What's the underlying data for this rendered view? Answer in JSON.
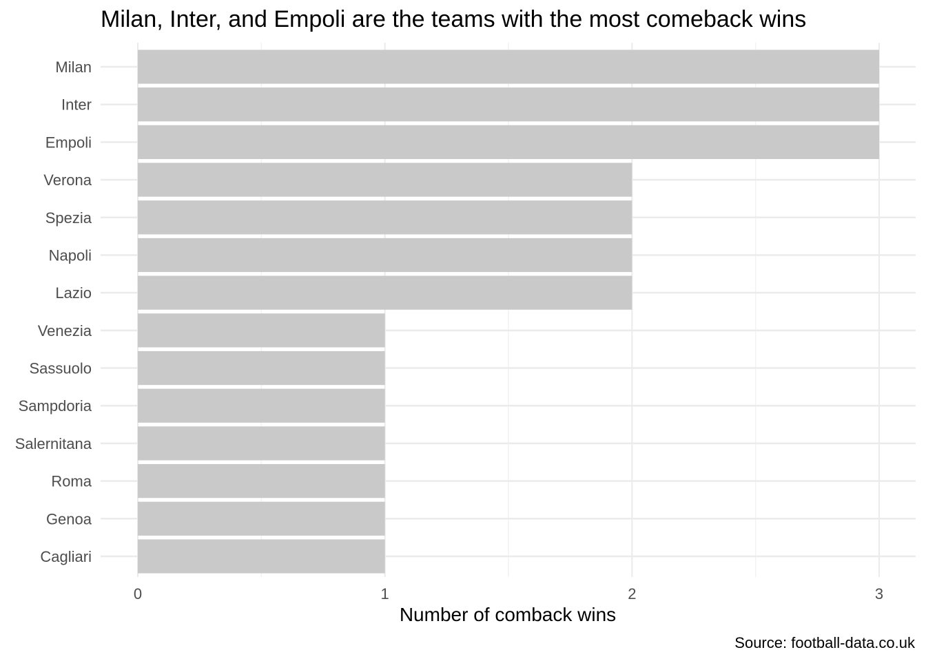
{
  "chart_data": {
    "type": "bar",
    "orientation": "horizontal",
    "title": "Milan, Inter, and Empoli are the teams with the most comeback wins",
    "xlabel": "Number of comback wins",
    "ylabel": "",
    "caption": "Source: football-data.co.uk",
    "categories": [
      "Milan",
      "Inter",
      "Empoli",
      "Verona",
      "Spezia",
      "Napoli",
      "Lazio",
      "Venezia",
      "Sassuolo",
      "Sampdoria",
      "Salernitana",
      "Roma",
      "Genoa",
      "Cagliari"
    ],
    "values": [
      3,
      3,
      3,
      2,
      2,
      2,
      2,
      1,
      1,
      1,
      1,
      1,
      1,
      1
    ],
    "xlim": [
      0,
      3
    ],
    "x_ticks": [
      "0",
      "1",
      "2",
      "3"
    ],
    "grid": true,
    "legend": "none",
    "colors": {
      "bar": "#c9c9c9",
      "grid_major": "#ebebeb",
      "grid_minor": "#f2f2f2",
      "tick_text": "#4d4d4d",
      "title_text": "#000000"
    }
  }
}
